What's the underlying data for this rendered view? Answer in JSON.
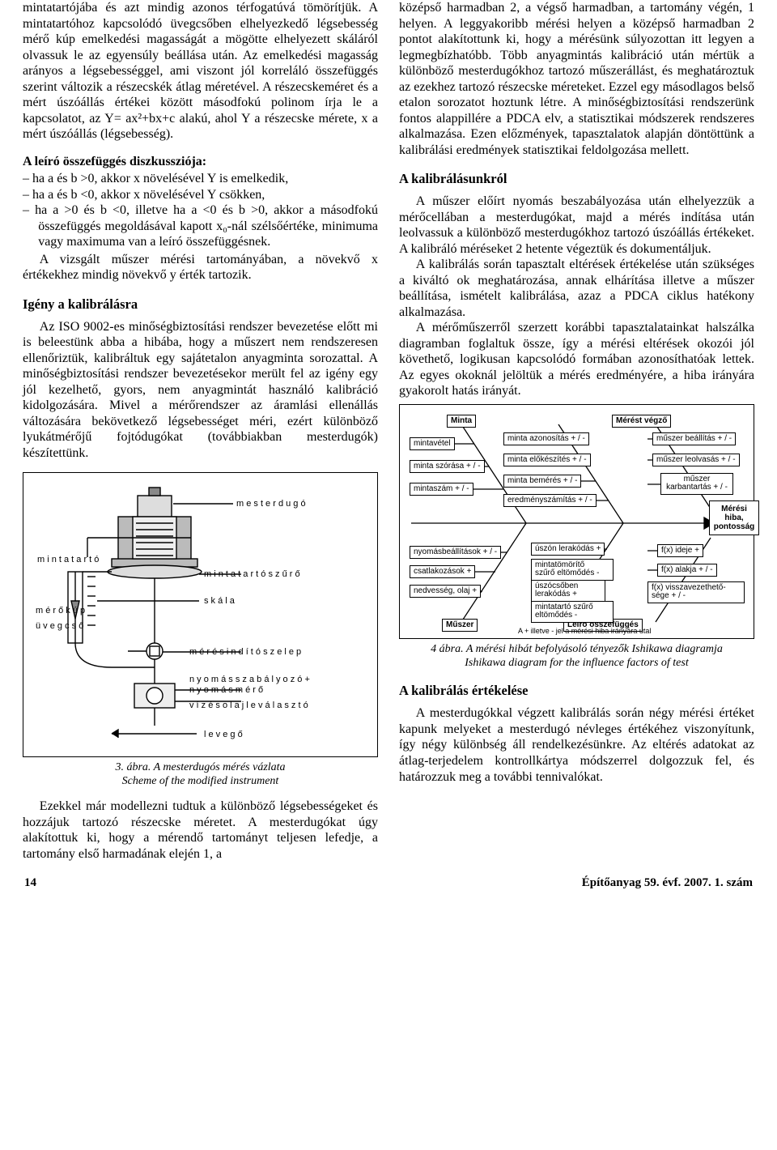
{
  "left": {
    "para1": "mintatartójába és azt mindig azonos térfogatúvá tömörítjük. A mintatartóhoz kapcsolódó üvegcsőben elhelyezkedő légsebesség mérő kúp emelkedési magasságát a mögötte elhelyezett skáláról olvassuk le az egyensúly beállása után. Az emelkedési magasság arányos a légsebességgel, ami viszont jól korreláló összefüggés szerint változik a részecskék átlag méretével. A részecskeméret és a mért úszóállás értékei között másodfokú polinom írja le a kapcsolatot, az Y= ax²+bx+c alakú, ahol Y a részecske mérete, x a mért úszóállás (légsebesség).",
    "discTitle": "A leíró összefüggés diszkussziója:",
    "disc": [
      "ha a és b >0, akkor x növelésével Y is emelkedik,",
      "ha a és b <0, akkor x növelésével Y csökken,",
      "ha a >0 és b <0, illetve ha a <0 és b >0, akkor a másodfokú összefüggés megoldásával kapott x₀-nál szélsőértéke, minimuma vagy maximuma van a leíró összefüggésnek."
    ],
    "discAfter": "A vizsgált műszer mérési tartományában, a növekvő x értékekhez mindig növekvő y érték tartozik.",
    "h_igeny": "Igény a kalibrálásra",
    "igeny_para": "Az ISO 9002-es minőségbiztosítási rendszer bevezetése előtt mi is beleestünk abba a hibába, hogy a műszert nem rendszeresen ellenőriztük, kalibráltuk egy sajátetalon anyagminta sorozattal. A minőségbiztosítási rendszer bevezetésekor merült fel az igény egy jól kezelhető, gyors, nem anyagmintát használó kalibráció kidolgozására. Mivel a mérőrendszer az áramlási ellenállás változására bekövetkező légsebességet méri, ezért különböző lyukátmérőjű fojtódugókat (továbbiakban mesterdugók) készítettünk.",
    "fig3_labels": {
      "mesterdugo": "m e s t e r d u g ó",
      "mintatarto": "m i n t a t a r t ó",
      "merokup": "m é r ő k ú p",
      "uvegcso": "ü v e g c s ő",
      "mintatarto_szuro": "m i n t a t a r t ó   s z ű r ő",
      "skala": "s k á l a",
      "szelep": "m é r é s i n d í t ó   s z e l e p",
      "nyomas": "n y o m á s s z a b á l y o z ó   +\nn y o m á s m é r ő",
      "viz": "v í z   é s   o l a j l e v á l a s z t ó",
      "levego": "l e v e g ő"
    },
    "fig3_cap1": "3. ábra. A mesterdugós mérés vázlata",
    "fig3_cap2": "Scheme of the modified instrument",
    "para_after_fig3": "Ezekkel már modellezni tudtuk a különböző légsebességeket és hozzájuk tartozó részecske méretet. A mesterdugókat úgy alakítottuk ki, hogy a mérendő tartományt teljesen lefedje, a tartomány első harmadának elején 1, a"
  },
  "right": {
    "para_top": "középső harmadban 2, a végső harmadban, a tartomány végén, 1 helyen. A leggyakoribb mérési helyen a középső harmadban 2 pontot alakítottunk ki, hogy a mérésünk súlyozottan itt legyen a legmegbízhatóbb. Több anyagmintás kalibráció után mértük a különböző mesterdugókhoz tartozó műszerállást, és meghatároztuk az ezekhez tartozó részecske méreteket. Ezzel egy másodlagos belső etalon sorozatot hoztunk létre. A minőségbiztosítási rendszerünk fontos alappillére a PDCA elv, a statisztikai módszerek rendszeres alkalmazása. Ezen előzmények, tapasztalatok alapján döntöttünk a kalibrálási eredmények statisztikai feldolgozása mellett.",
    "h_kal": "A kalibrálásunkról",
    "kal_p1": "A műszer előírt nyomás beszabályozása után elhelyezzük a mérőcellában a mesterdugókat, majd a mérés indítása után leolvassuk a különböző mesterdugókhoz tartozó úszóállás értékeket. A kalibráló méréseket 2 hetente végeztük és dokumentáljuk.",
    "kal_p2": "A kalibrálás során tapasztalt eltérések értékelése után szükséges a kiváltó ok meghatározása, annak elhárítása illetve a műszer beállítása, ismételt kalibrálása, azaz a PDCA ciklus hatékony alkalmazása.",
    "kal_p3": "A mérőműszerről szerzett korábbi tapasztalatainkat halszálka diagramban foglaltuk össze, így a mérési eltérések okozói jól követhető, logikusan kapcsolódó formában azonosíthatóak lettek. Az egyes okoknál jelöltük a mérés eredményére, a hiba irányára gyakorolt hatás irányát.",
    "fb": {
      "top_left_head": "Minta",
      "top_right_head": "Mérést végző",
      "bottom_left_head": "Műszer",
      "bottom_right_head": "Leíró összefüggés",
      "result_head": "Mérési\nhiba,\npontosság",
      "tl": [
        "mintavétel",
        "minta szórása + / -",
        "mintaszám + / -"
      ],
      "tm": [
        "minta azonosítás + / -",
        "minta előkészítés + / -",
        "minta bemérés + / -",
        "eredményszámítás + / -"
      ],
      "tr": [
        "műszer beállítás + / -",
        "műszer leolvasás + / -",
        "műszer\nkarbantartás + / -"
      ],
      "bl": [
        "nyomásbeállítások + / -",
        "csatlakozások +",
        "nedvesség, olaj +"
      ],
      "bm": [
        "úszón lerakódás +",
        "mintatömörítő\nszűrő eltömődés -",
        "úszócsőben\nlerakódás +",
        "mintatartó szűrő\neltömődés -"
      ],
      "br": [
        "f(x) ideje +",
        "f(x) alakja + / -",
        "f(x) visszavezethető-\nsége + / -"
      ],
      "footnote": "A + illetve - jel a mérési hiba irányára utal"
    },
    "fig4_cap1": "4 ábra. A mérési hibát befolyásoló tényezők Ishikawa diagramja",
    "fig4_cap2": "Ishikawa diagram for the influence factors of test",
    "h_ert": "A kalibrálás értékelése",
    "ert_p": "A mesterdugókkal végzett kalibrálás során négy mérési értéket kapunk melyeket a mesterdugó névleges értékéhez viszonyítunk, így négy különbség áll rendelkezésünkre. Az eltérés adatokat az átlag-terjedelem kontrollkártya módszerrel dolgozzuk fel, és határozzuk meg a további tennivalókat."
  },
  "footer": {
    "page": "14",
    "issue": "Építőanyag 59. évf. 2007. 1. szám"
  },
  "svg3": {
    "stroke": "#000",
    "fill_body": "#999",
    "fill_light": "#ccc",
    "bg": "#fff"
  }
}
